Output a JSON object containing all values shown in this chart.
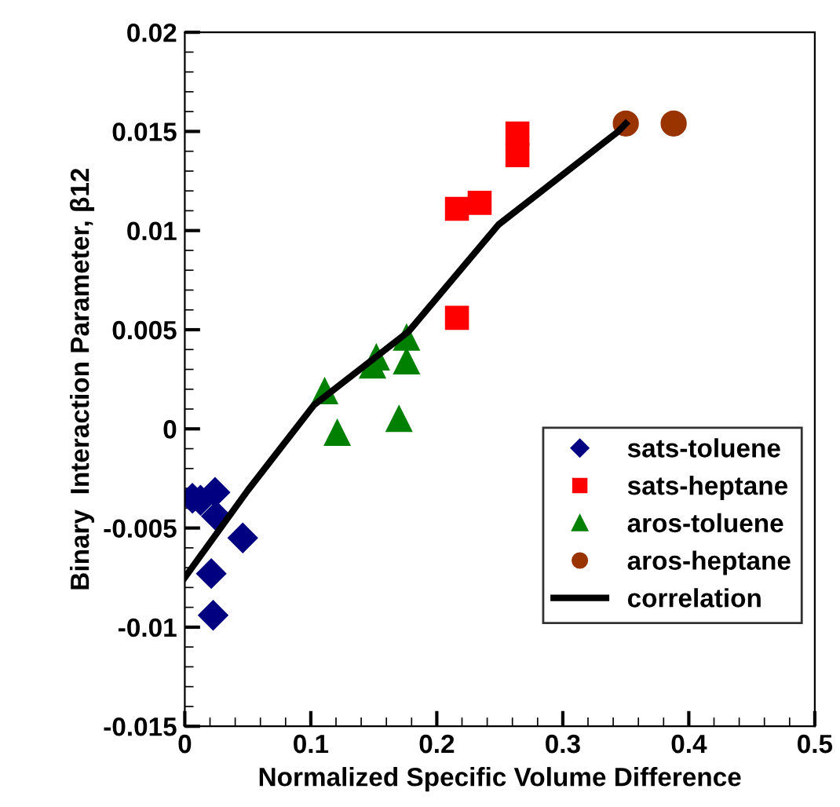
{
  "chart_data": {
    "type": "scatter",
    "xlabel": "Normalized Specific Volume Difference",
    "ylabel": "Binary  Interaction Parameter, β12",
    "xlim": [
      0,
      0.5
    ],
    "xticks": [
      {
        "value": 0,
        "label": "0"
      },
      {
        "value": 0.1,
        "label": "0.1"
      },
      {
        "value": 0.2,
        "label": "0.2"
      },
      {
        "value": 0.3,
        "label": "0.3"
      },
      {
        "value": 0.4,
        "label": "0.4"
      },
      {
        "value": 0.5,
        "label": "0.5"
      }
    ],
    "ylim": [
      -0.015,
      0.02
    ],
    "yticks": [
      -0.015,
      -0.01,
      -0.005,
      {
        "value": 0,
        "label": "0"
      },
      0.005,
      0.01,
      0.015,
      0.02
    ],
    "grid": false,
    "legend": "bottom right",
    "series": [
      {
        "name": "sats-toluene",
        "color": "#000080",
        "marker": "diamond",
        "x": [
          0.006,
          0.0125,
          0.024,
          0.025,
          0.046,
          0.021,
          0.0225
        ],
        "values": [
          -0.0035,
          -0.0036,
          -0.0032,
          -0.0044,
          -0.0055,
          -0.0073,
          -0.0094
        ]
      },
      {
        "name": "sats-heptane",
        "color": "#ff0000",
        "marker": "square",
        "x": [
          0.216,
          0.234,
          0.264,
          0.264,
          0.216
        ],
        "values": [
          0.0111,
          0.0114,
          0.0149,
          0.0138,
          0.0056
        ]
      },
      {
        "name": "aros-toluene",
        "color": "#008000",
        "marker": "triangle",
        "x": [
          0.111,
          0.121,
          0.149,
          0.152,
          0.176,
          0.176,
          0.17
        ],
        "values": [
          0.0019,
          -0.0002,
          0.0032,
          0.0036,
          0.0046,
          0.0034,
          0.0005
        ]
      },
      {
        "name": "aros-heptane",
        "color": "#993300",
        "marker": "circle",
        "x": [
          0.35,
          0.388
        ],
        "values": [
          0.0154,
          0.0154
        ]
      },
      {
        "name": "correlation",
        "type": "line",
        "color": "#000000",
        "marker": "none",
        "x": [
          0,
          0.05,
          0.1025,
          0.1775,
          0.249,
          0.344,
          0.35
        ],
        "values": [
          -0.0075,
          -0.0031,
          0.0012,
          0.0049,
          0.0103,
          0.015,
          0.0154
        ]
      }
    ]
  }
}
